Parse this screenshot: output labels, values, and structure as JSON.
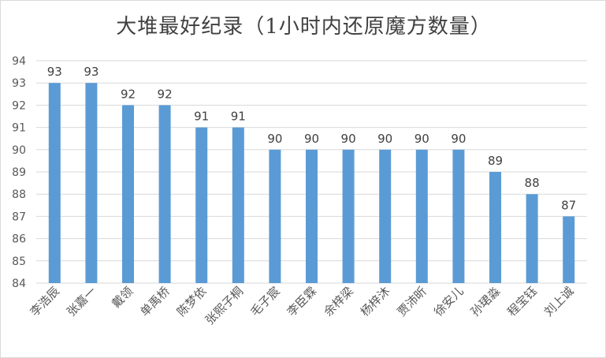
{
  "chart_data": {
    "type": "bar",
    "title": "大堆最好纪录（1小时内还原魔方数量）",
    "categories": [
      "李浩辰",
      "张嘉一",
      "戴领",
      "单禹桥",
      "陈梦依",
      "张熙子桐",
      "毛子宸",
      "李臣霖",
      "余梓梁",
      "杨梓沐",
      "贾沛昕",
      "徐安儿",
      "孙珺淼",
      "程宝钰",
      "刘上诚"
    ],
    "values": [
      93,
      93,
      92,
      92,
      91,
      91,
      90,
      90,
      90,
      90,
      90,
      90,
      89,
      88,
      87
    ],
    "ylim": [
      84,
      94
    ],
    "yticks": [
      84,
      85,
      86,
      87,
      88,
      89,
      90,
      91,
      92,
      93,
      94
    ],
    "xlabel": "",
    "ylabel": "",
    "grid": true,
    "legend": "none",
    "colors": {
      "bar": "#5b9bd5",
      "grid": "#d9d9d9",
      "text": "#404040",
      "ticks": "#595959"
    }
  }
}
